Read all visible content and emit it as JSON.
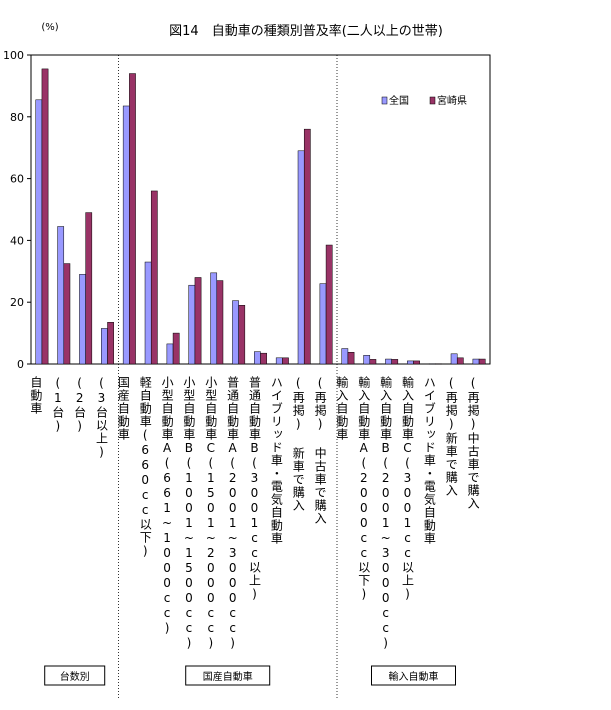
{
  "chart_data": {
    "type": "bar",
    "title": "図14　自動車の種類別普及率(二人以上の世帯)",
    "unit": "(%)",
    "ylim": [
      0,
      100
    ],
    "yticks": [
      0,
      20,
      40,
      60,
      80,
      100
    ],
    "grid": false,
    "legend_position": "top-right",
    "categories": [
      "自動車",
      "(1台)",
      "(2台)",
      "(3台以上)",
      "国産自動車",
      "軽自動車(660cc以下)",
      "小型自動車A(661~1000cc)",
      "小型自動車B(1001~1500cc)",
      "小型自動車C(1501~2000cc)",
      "普通自動車A(2001~3000cc)",
      "普通自動車B(3001cc以上)",
      "ハイブリッド車・電気自動車",
      "(再掲) 新車で購入",
      "(再掲) 中古車で購入",
      "輸入自動車",
      "輸入自動車A(2000cc以下)",
      "輸入自動車B(2001~3000cc)",
      "輸入自動車C(3001cc以上)",
      "ハイブリッド車・電気自動車",
      "(再掲)新車で購入",
      "(再掲)中古車で購入"
    ],
    "series": [
      {
        "name": "全国",
        "color": "#9999ff",
        "values": [
          85.5,
          44.5,
          29,
          11.5,
          83.5,
          33,
          6.5,
          25.5,
          29.5,
          20.5,
          4,
          2,
          69,
          26,
          5,
          2.8,
          1.6,
          1,
          0.1,
          3.3,
          1.6
        ]
      },
      {
        "name": "宮崎県",
        "color": "#993366",
        "values": [
          95.5,
          32.5,
          49,
          13.5,
          94,
          56,
          10,
          28,
          27,
          19,
          3.5,
          2,
          76,
          38.5,
          3.8,
          1.5,
          1.5,
          1,
          0.1,
          2,
          1.6
        ]
      }
    ],
    "groups": [
      {
        "label": "台数別",
        "start": 0,
        "end": 3
      },
      {
        "label": "国産自動車",
        "start": 4,
        "end": 13
      },
      {
        "label": "輸入自動車",
        "start": 14,
        "end": 20
      }
    ]
  }
}
